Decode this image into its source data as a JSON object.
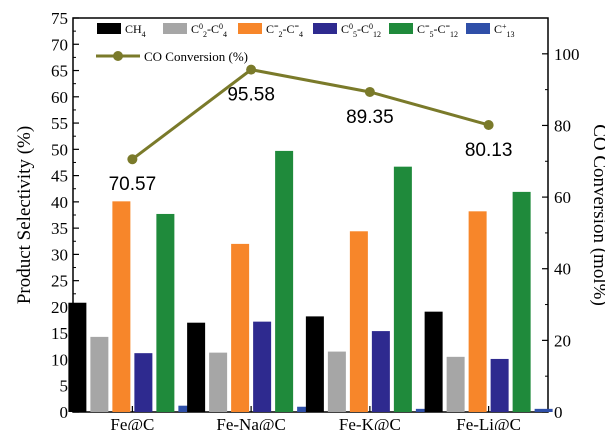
{
  "chart_data": {
    "type": "bar",
    "categories": [
      "Fe@C",
      "Fe-Na@C",
      "Fe-K@C",
      "Fe-Li@C"
    ],
    "series": [
      {
        "name": "CH4",
        "values": [
          20.8,
          17.0,
          18.2,
          19.1
        ],
        "color": "#000000"
      },
      {
        "name": "C2o-C4o",
        "values": [
          14.3,
          11.3,
          11.5,
          10.5
        ],
        "color": "#a6a6a6"
      },
      {
        "name": "C2=-C4=",
        "values": [
          40.1,
          32.0,
          34.4,
          38.2
        ],
        "color": "#f7862a"
      },
      {
        "name": "C5o-C12o",
        "values": [
          11.2,
          17.2,
          15.4,
          10.1
        ],
        "color": "#2e2a8f"
      },
      {
        "name": "C5=-C12=",
        "values": [
          37.7,
          49.7,
          46.7,
          41.9
        ],
        "color": "#1f8a3b"
      },
      {
        "name": "C13+",
        "values": [
          1.2,
          1.0,
          0.6,
          0.6
        ],
        "color": "#2f4fa8"
      }
    ],
    "legend_parts": [
      {
        "a": "CH",
        "sub1": "4"
      },
      {
        "a": "C",
        "sub1": "2",
        "sup1": "0",
        "b": "-C",
        "sub2": "4",
        "sup2": "0"
      },
      {
        "a": "C",
        "sub1": "2",
        "sup1": "=",
        "b": "-C",
        "sub2": "4",
        "sup2": "="
      },
      {
        "a": "C",
        "sub1": "5",
        "sup1": "0",
        "b": "-C",
        "sub2": "12",
        "sup2": "0"
      },
      {
        "a": "C",
        "sub1": "5",
        "sup1": "=",
        "b": "-C",
        "sub2": "12",
        "sup2": "="
      },
      {
        "a": "C",
        "sub1": "13",
        "sup1": "+"
      }
    ],
    "line_series": {
      "name": "CO Conversion (%)",
      "values": [
        70.57,
        95.58,
        89.35,
        80.13
      ],
      "labels": [
        "70.57",
        "95.58",
        "89.35",
        "80.13"
      ],
      "color": "#7a7a2a"
    },
    "ylabel": "Product Selectivity (%)",
    "y2label": "CO Conversion (mol%)",
    "ylim": [
      0,
      75
    ],
    "y2lim": [
      0,
      110
    ],
    "yticks": [
      "0",
      "5",
      "10",
      "15",
      "20",
      "25",
      "30",
      "35",
      "40",
      "45",
      "50",
      "55",
      "60",
      "65",
      "70",
      "75"
    ],
    "y2ticks": [
      "0",
      "20",
      "40",
      "60",
      "80",
      "100"
    ],
    "legend_position": "top"
  }
}
